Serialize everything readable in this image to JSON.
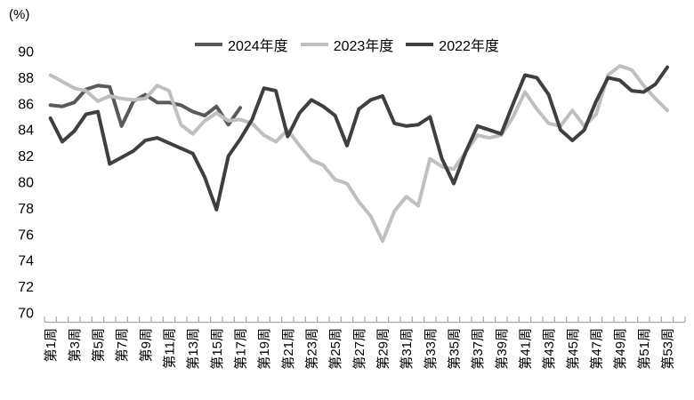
{
  "unit_label": "(%)",
  "chart_data": {
    "type": "line",
    "title": "",
    "y_axis": {
      "unit": "(%)",
      "min": 70,
      "max": 90,
      "step": 2,
      "tick_labels": [
        "90",
        "88",
        "86",
        "84",
        "82",
        "80",
        "78",
        "76",
        "74",
        "72",
        "70"
      ]
    },
    "x_axis": {
      "categories_count": 53,
      "label_every_n_weeks": 2,
      "tick_labels": [
        "第1周",
        "第3周",
        "第5周",
        "第7周",
        "第9周",
        "第11周",
        "第13周",
        "第15周",
        "第17周",
        "第19周",
        "第21周",
        "第23周",
        "第25周",
        "第27周",
        "第29周",
        "第31周",
        "第33周",
        "第35周",
        "第37周",
        "第39周",
        "第41周",
        "第43周",
        "第45周",
        "第47周",
        "第49周",
        "第51周",
        "第53周"
      ]
    },
    "grid": false,
    "legend_position": "top-center",
    "axis_color": "#a6a6a6",
    "series": [
      {
        "name": "2024年度",
        "color": "#595959",
        "start_week": 1,
        "values": [
          85.9,
          85.8,
          86.1,
          87.1,
          87.4,
          87.3,
          84.3,
          86.2,
          86.7,
          86.1,
          86.1,
          85.9,
          85.4,
          85.1,
          85.8,
          84.4,
          85.7
        ]
      },
      {
        "name": "2023年度",
        "color": "#bfbfbf",
        "start_week": 1,
        "values": [
          88.2,
          87.7,
          87.2,
          87.0,
          86.2,
          86.6,
          86.4,
          86.3,
          86.4,
          87.4,
          87.0,
          84.4,
          83.7,
          84.7,
          85.3,
          84.7,
          84.8,
          84.5,
          83.6,
          83.1,
          84.0,
          82.8,
          81.7,
          81.3,
          80.2,
          79.9,
          78.5,
          77.4,
          75.5,
          77.8,
          78.9,
          78.2,
          81.8,
          81.2,
          81.0,
          82.3,
          83.6,
          83.4,
          83.6,
          85.0,
          86.9,
          85.6,
          84.5,
          84.3,
          85.5,
          84.3,
          85.2,
          88.2,
          88.9,
          88.6,
          87.4,
          86.4,
          85.5
        ]
      },
      {
        "name": "2022年度",
        "color": "#3f3f3f",
        "start_week": 1,
        "values": [
          84.9,
          83.1,
          83.9,
          85.2,
          85.4,
          81.4,
          81.9,
          82.4,
          83.2,
          83.4,
          83.0,
          82.6,
          82.2,
          80.4,
          77.9,
          82.0,
          83.3,
          84.8,
          87.2,
          87.0,
          83.5,
          85.3,
          86.3,
          85.8,
          85.1,
          82.8,
          85.6,
          86.3,
          86.6,
          84.5,
          84.3,
          84.4,
          85.0,
          81.8,
          79.9,
          82.3,
          84.3,
          84.0,
          83.7,
          86.0,
          88.2,
          88.0,
          86.7,
          84.0,
          83.2,
          84.0,
          86.2,
          88.0,
          87.8,
          87.0,
          86.9,
          87.5,
          88.8
        ]
      }
    ]
  }
}
